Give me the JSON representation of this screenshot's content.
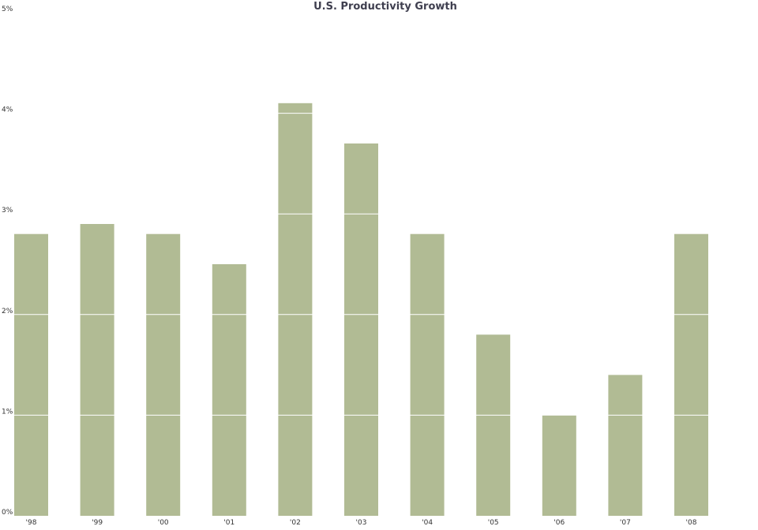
{
  "chart_data": {
    "type": "bar",
    "title": "U.S. Productivity Growth",
    "xlabel": "",
    "ylabel": "",
    "categories": [
      "'98",
      "'99",
      "'00",
      "'01",
      "'02",
      "'03",
      "'04",
      "'05",
      "'06",
      "'07",
      "'08"
    ],
    "values": [
      2.8,
      2.9,
      2.8,
      2.5,
      4.1,
      3.7,
      2.8,
      1.8,
      1.0,
      1.4,
      2.8
    ],
    "ylim": [
      0,
      5
    ],
    "yticks": [
      0,
      1,
      2,
      3,
      4,
      5
    ],
    "ytick_labels": [
      "0%",
      "1%",
      "2%",
      "3%",
      "4%",
      "5%"
    ],
    "grid": true,
    "legend": "none",
    "colors": {
      "bar": "#b1bb94",
      "grid": "#ffffff",
      "title": "#3f3f4f"
    }
  }
}
